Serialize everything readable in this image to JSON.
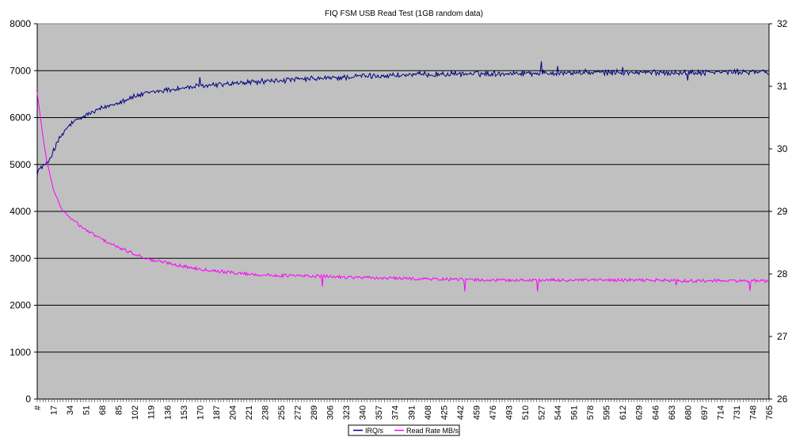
{
  "chart_data": {
    "type": "line",
    "title": "FIQ FSM USB Read Test (1GB random data)",
    "xlabel": "",
    "ylabel": "",
    "y2label": "",
    "x_first_label": "#",
    "x_tick_step": 17,
    "x_max": 765,
    "ylim": [
      0,
      8000
    ],
    "ylim_right": [
      26,
      32
    ],
    "y_ticks": [
      0,
      1000,
      2000,
      3000,
      4000,
      5000,
      6000,
      7000,
      8000
    ],
    "y2_ticks": [
      26,
      27,
      28,
      29,
      30,
      31,
      32
    ],
    "grid": true,
    "legend_position": "bottom",
    "series": [
      {
        "name": "IRQ/s",
        "axis": "left",
        "color": "#000080",
        "anchors": [
          [
            0,
            4850
          ],
          [
            5,
            4950
          ],
          [
            10,
            5000
          ],
          [
            17,
            5300
          ],
          [
            25,
            5600
          ],
          [
            34,
            5850
          ],
          [
            51,
            6050
          ],
          [
            68,
            6200
          ],
          [
            85,
            6330
          ],
          [
            102,
            6450
          ],
          [
            119,
            6540
          ],
          [
            136,
            6590
          ],
          [
            153,
            6630
          ],
          [
            170,
            6670
          ],
          [
            187,
            6700
          ],
          [
            204,
            6720
          ],
          [
            221,
            6750
          ],
          [
            238,
            6770
          ],
          [
            272,
            6810
          ],
          [
            306,
            6840
          ],
          [
            340,
            6880
          ],
          [
            374,
            6900
          ],
          [
            408,
            6920
          ],
          [
            442,
            6930
          ],
          [
            476,
            6940
          ],
          [
            510,
            6950
          ],
          [
            544,
            6950
          ],
          [
            578,
            6960
          ],
          [
            612,
            6960
          ],
          [
            646,
            6960
          ],
          [
            680,
            6960
          ],
          [
            714,
            6970
          ],
          [
            748,
            6970
          ],
          [
            765,
            6970
          ]
        ],
        "spikes": [
          [
            170,
            6860
          ],
          [
            340,
            6930
          ],
          [
            527,
            7200
          ],
          [
            544,
            7100
          ],
          [
            612,
            7080
          ],
          [
            680,
            6790
          ]
        ]
      },
      {
        "name": "Read Rate MB/s",
        "axis": "right",
        "color": "#ff00ff",
        "anchors": [
          [
            0,
            30.9
          ],
          [
            5,
            30.3
          ],
          [
            10,
            29.8
          ],
          [
            17,
            29.35
          ],
          [
            25,
            29.05
          ],
          [
            34,
            28.9
          ],
          [
            51,
            28.7
          ],
          [
            68,
            28.55
          ],
          [
            85,
            28.42
          ],
          [
            102,
            28.32
          ],
          [
            119,
            28.22
          ],
          [
            136,
            28.18
          ],
          [
            153,
            28.12
          ],
          [
            170,
            28.08
          ],
          [
            187,
            28.05
          ],
          [
            204,
            28.02
          ],
          [
            221,
            28.0
          ],
          [
            238,
            27.98
          ],
          [
            272,
            27.97
          ],
          [
            306,
            27.96
          ],
          [
            340,
            27.94
          ],
          [
            374,
            27.93
          ],
          [
            408,
            27.92
          ],
          [
            442,
            27.91
          ],
          [
            476,
            27.9
          ],
          [
            510,
            27.9
          ],
          [
            544,
            27.9
          ],
          [
            578,
            27.9
          ],
          [
            612,
            27.9
          ],
          [
            646,
            27.9
          ],
          [
            680,
            27.89
          ],
          [
            714,
            27.89
          ],
          [
            748,
            27.89
          ],
          [
            765,
            27.88
          ]
        ],
        "spikes": [
          [
            298,
            27.8
          ],
          [
            447,
            27.72
          ],
          [
            523,
            27.72
          ],
          [
            668,
            27.82
          ],
          [
            745,
            27.73
          ]
        ]
      }
    ]
  }
}
